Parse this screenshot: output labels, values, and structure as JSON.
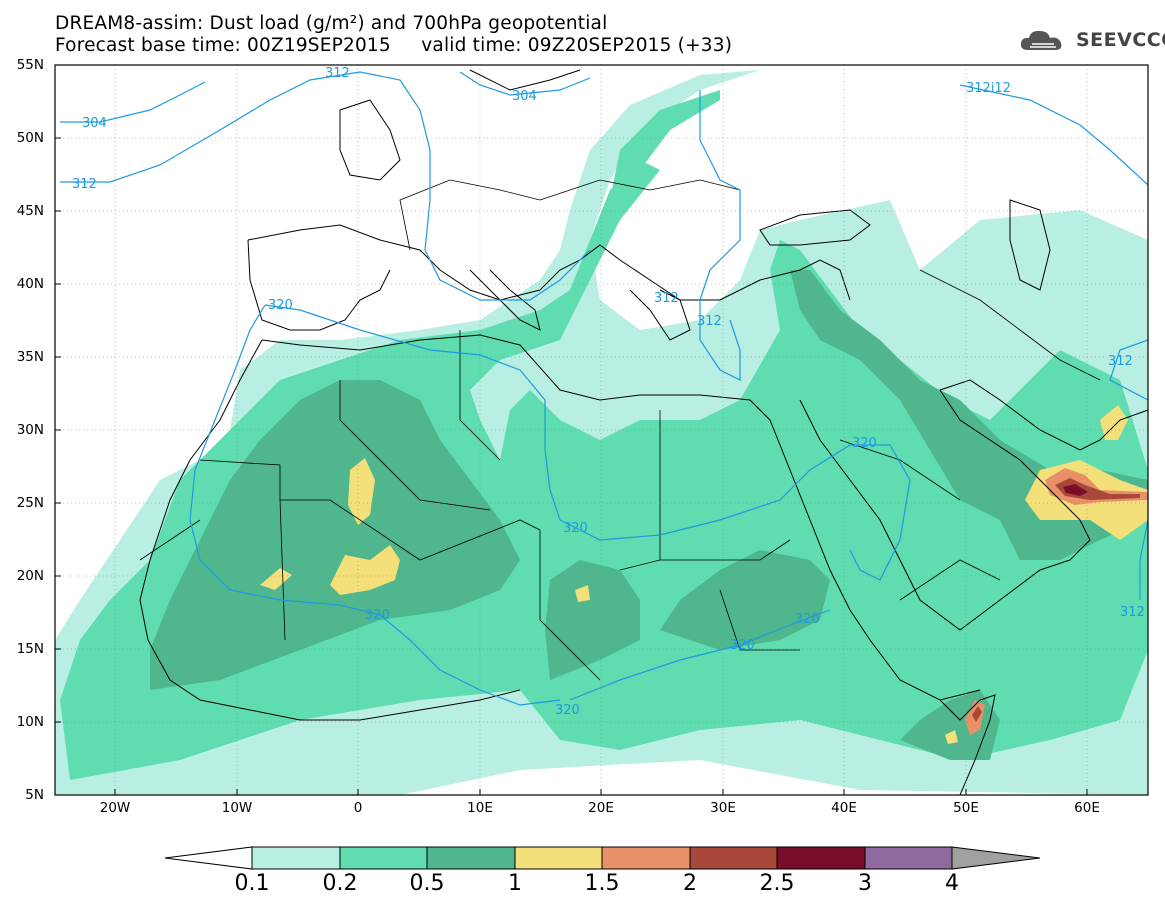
{
  "title": {
    "line1": "DREAM8-assim: Dust load (g/m²) and 700hPa geopotential",
    "line2": "Forecast base time: 00Z19SEP2015     valid time: 09Z20SEP2015 (+33)"
  },
  "logo": {
    "text": "SEEVCCC",
    "icon": "cloud-logo-icon"
  },
  "map": {
    "projection": "lat-lon",
    "lon_range": [
      -25,
      65
    ],
    "lat_range": [
      5,
      55
    ],
    "lat_labels": [
      "55N",
      "50N",
      "45N",
      "40N",
      "35N",
      "30N",
      "25N",
      "20N",
      "15N",
      "10N",
      "5N"
    ],
    "lon_labels": [
      "20W",
      "10W",
      "0",
      "10E",
      "20E",
      "30E",
      "40E",
      "50E",
      "60E"
    ],
    "contour_labels": [
      "312",
      "304",
      "304",
      "312",
      "312i12",
      "312",
      "312",
      "320",
      "320",
      "320",
      "320",
      "320",
      "320",
      "312",
      "312"
    ],
    "colors": {
      "c1": "#b8efe2",
      "c2": "#5fdcb0",
      "c3": "#4fb68e",
      "c4": "#f3e07a",
      "c5": "#e89068",
      "c6": "#a84838",
      "c7": "#7a0e2a",
      "c8": "#8e6a9e",
      "c9": "#a0a0a0",
      "contour": "#1e9ae0",
      "coast": "#000000"
    }
  },
  "colorbar": {
    "labels": [
      "0.1",
      "0.2",
      "0.5",
      "1",
      "1.5",
      "2",
      "2.5",
      "3",
      "4"
    ]
  }
}
